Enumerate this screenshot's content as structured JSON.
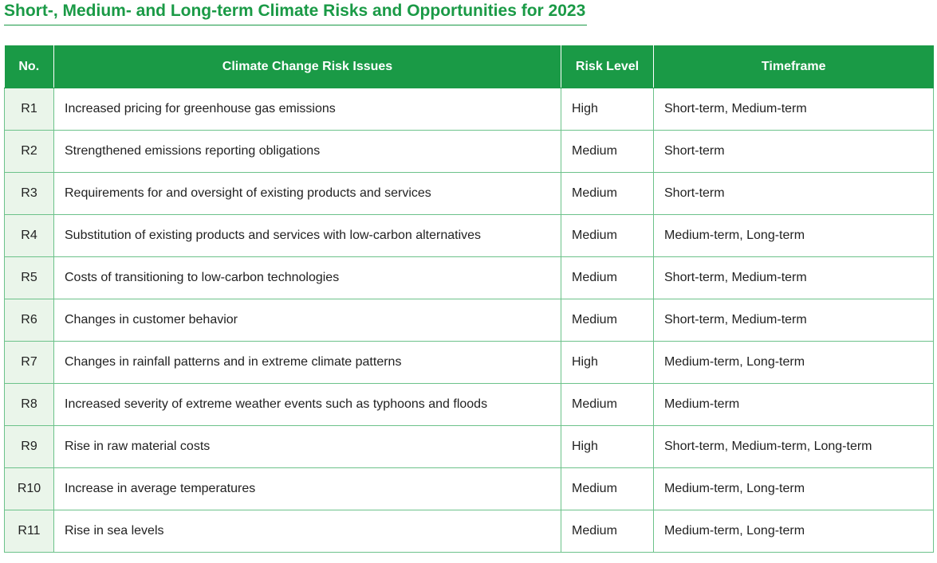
{
  "title": "Short-, Medium- and Long-term Climate Risks and Opportunities for 2023",
  "colors": {
    "accent": "#1a9a46",
    "row_number_bg": "#eaf5ea",
    "grid_line": "#6cc28a"
  },
  "table": {
    "headers": [
      "No.",
      "Climate Change Risk Issues",
      "Risk Level",
      "Timeframe"
    ],
    "rows": [
      {
        "no": "R1",
        "issue": "Increased pricing for greenhouse gas emissions",
        "level": "High",
        "timeframe": "Short-term, Medium-term"
      },
      {
        "no": "R2",
        "issue": "Strengthened emissions reporting obligations",
        "level": "Medium",
        "timeframe": "Short-term"
      },
      {
        "no": "R3",
        "issue": "Requirements for and oversight of existing products and services",
        "level": "Medium",
        "timeframe": "Short-term"
      },
      {
        "no": "R4",
        "issue": "Substitution of existing products and services with low-carbon alternatives",
        "level": "Medium",
        "timeframe": "Medium-term, Long-term"
      },
      {
        "no": "R5",
        "issue": "Costs of transitioning to low-carbon technologies",
        "level": "Medium",
        "timeframe": "Short-term, Medium-term"
      },
      {
        "no": "R6",
        "issue": "Changes in customer behavior",
        "level": "Medium",
        "timeframe": "Short-term, Medium-term"
      },
      {
        "no": "R7",
        "issue": "Changes in rainfall patterns and in extreme climate patterns",
        "level": "High",
        "timeframe": "Medium-term, Long-term"
      },
      {
        "no": "R8",
        "issue": "Increased severity of extreme weather events such as typhoons and floods",
        "level": "Medium",
        "timeframe": "Medium-term"
      },
      {
        "no": "R9",
        "issue": "Rise in raw material costs",
        "level": "High",
        "timeframe": "Short-term, Medium-term, Long-term"
      },
      {
        "no": "R10",
        "issue": "Increase in average temperatures",
        "level": "Medium",
        "timeframe": "Medium-term, Long-term"
      },
      {
        "no": "R11",
        "issue": "Rise in sea levels",
        "level": "Medium",
        "timeframe": "Medium-term, Long-term"
      }
    ]
  }
}
